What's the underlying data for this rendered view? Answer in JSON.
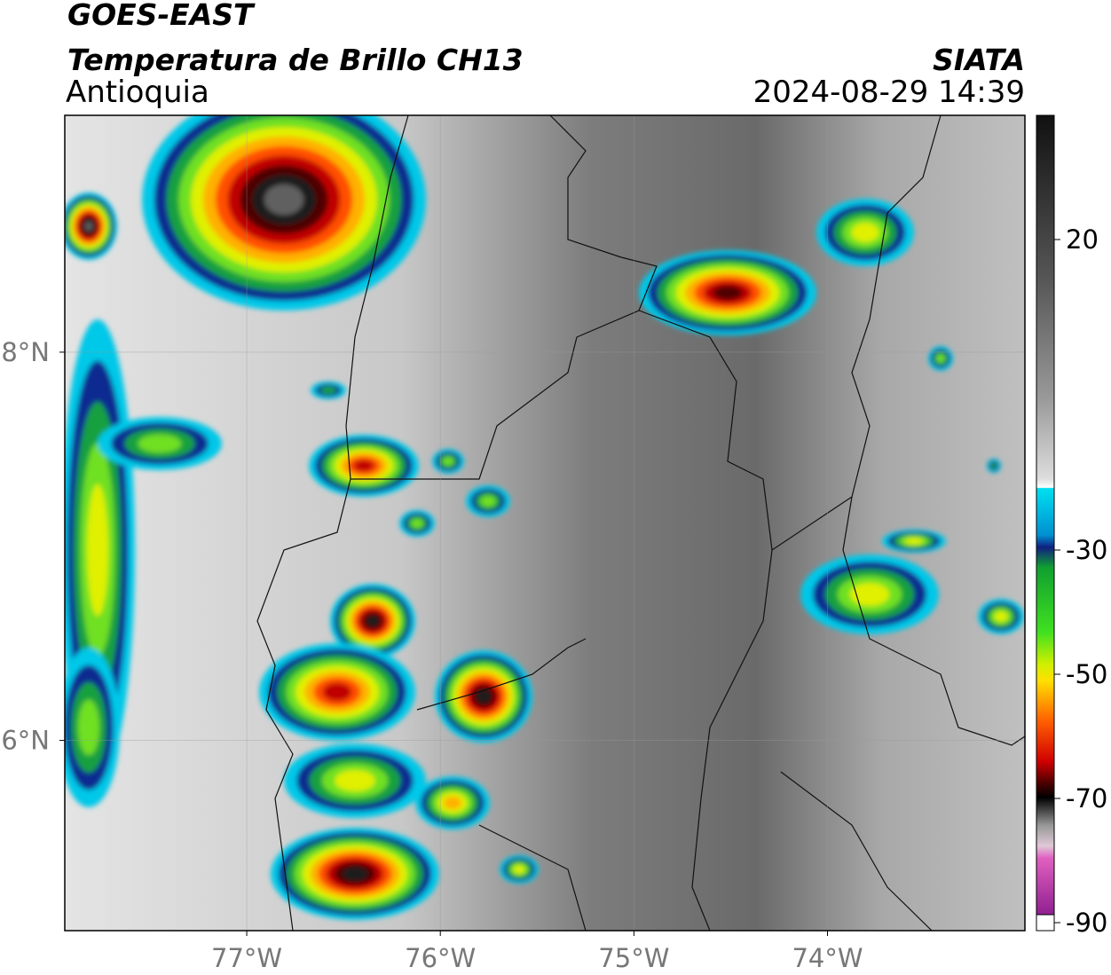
{
  "header": {
    "title": "GOES-EAST",
    "subtitle": "Temperatura de Brillo CH13",
    "region": "Antioquia",
    "source": "SIATA",
    "datetime": "2024-08-29 14:39"
  },
  "map": {
    "xlim": [
      -77.94,
      -72.98
    ],
    "ylim": [
      5.02,
      9.22
    ],
    "xticks": [
      {
        "value": -77,
        "label": "77°W"
      },
      {
        "value": -76,
        "label": "76°W"
      },
      {
        "value": -75,
        "label": "75°W"
      },
      {
        "value": -74,
        "label": "74°W"
      }
    ],
    "yticks": [
      {
        "value": 8,
        "label": "8°N"
      },
      {
        "value": 6,
        "label": "6°N"
      }
    ]
  },
  "colorbar": {
    "lim": [
      -90,
      40
    ],
    "ticks": [
      20,
      -30,
      -50,
      -70,
      -90
    ]
  }
}
